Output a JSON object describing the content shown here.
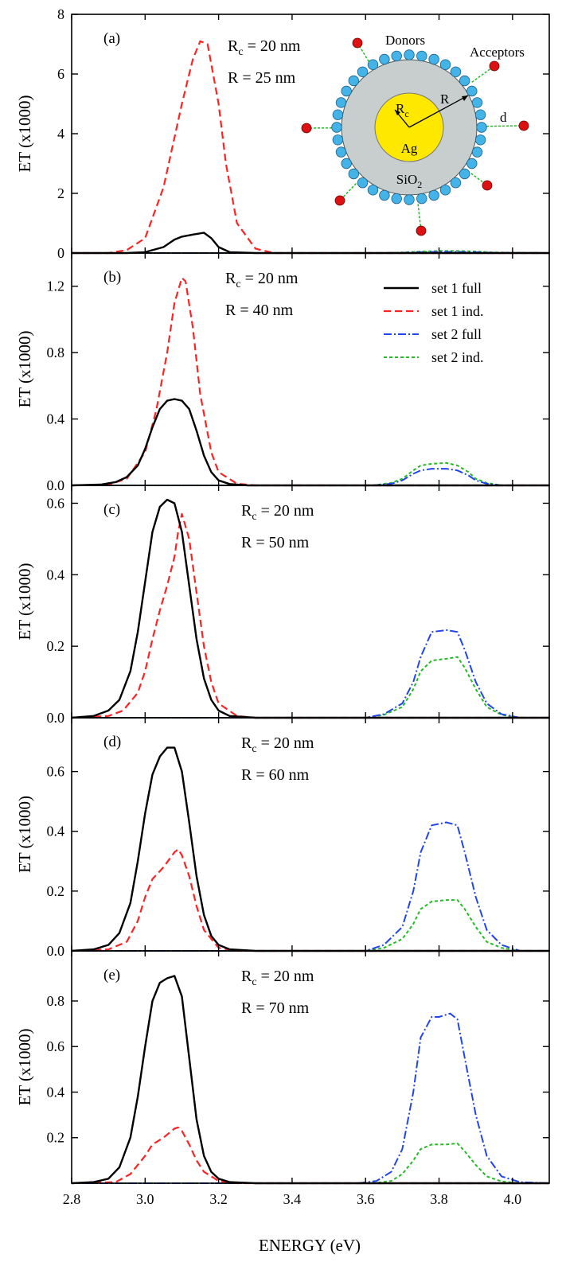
{
  "chart_data": {
    "type": "line",
    "xlabel": "ENERGY (eV)",
    "xlim": [
      2.8,
      4.1
    ],
    "xticks": [
      "2.8",
      "3.0",
      "3.2",
      "3.4",
      "3.6",
      "3.8",
      "4.0"
    ],
    "xtick_values": [
      2.8,
      3.0,
      3.2,
      3.4,
      3.6,
      3.8,
      4.0
    ],
    "legend": {
      "placement": "panel-b top-right",
      "entries": [
        {
          "id": "s1f",
          "label": "set 1 full",
          "color": "#000000",
          "style": "solid"
        },
        {
          "id": "s1i",
          "label": "set 1 ind.",
          "color": "#ff2222",
          "style": "dashed"
        },
        {
          "id": "s2f",
          "label": "set 2 full",
          "color": "#2244ee",
          "style": "dashdot"
        },
        {
          "id": "s2i",
          "label": "set 2 ind.",
          "color": "#22bb22",
          "style": "dotted"
        }
      ]
    },
    "inset": {
      "labels": {
        "donors": "Donors",
        "acceptors": "Acceptors",
        "rc": "R",
        "rc_sub": "c",
        "r": "R",
        "d": "d",
        "ag": "Ag",
        "sio": "SiO",
        "sio_sub": "2"
      },
      "colors": {
        "core": "#ffe800",
        "shell": "#c8cece",
        "donor": "#44b4e8",
        "acceptor": "#dd1111",
        "link": "#22bb22"
      }
    },
    "panels": [
      {
        "label": "(a)",
        "ylabel": "ET  (x1000)",
        "ylim": [
          0,
          8
        ],
        "yticks": [
          "0",
          "2",
          "4",
          "6",
          "8"
        ],
        "ytick_values": [
          0,
          2,
          4,
          6,
          8
        ],
        "annot_rc_prefix": "R",
        "annot_rc_sub": "c",
        "annot_rc_suffix": " = 20 nm",
        "annot_r": "R = 25 nm",
        "series": {
          "s1f": {
            "x": [
              2.8,
              2.95,
              3.0,
              3.05,
              3.08,
              3.1,
              3.13,
              3.16,
              3.18,
              3.2,
              3.23,
              3.3,
              4.1
            ],
            "y": [
              0,
              0,
              0.03,
              0.2,
              0.45,
              0.55,
              0.62,
              0.68,
              0.5,
              0.2,
              0.03,
              0,
              0
            ]
          },
          "s1i": {
            "x": [
              2.8,
              2.9,
              2.95,
              3.0,
              3.05,
              3.1,
              3.13,
              3.15,
              3.17,
              3.2,
              3.22,
              3.25,
              3.3,
              3.35,
              4.1
            ],
            "y": [
              0,
              0,
              0.1,
              0.5,
              2.2,
              5.0,
              6.5,
              7.1,
              7.0,
              5.0,
              3.0,
              1.0,
              0.15,
              0,
              0
            ]
          },
          "s2f": {
            "x": [
              2.8,
              3.65,
              3.7,
              3.75,
              3.8,
              3.85,
              3.9,
              3.95,
              4.1
            ],
            "y": [
              0,
              0,
              0.01,
              0.03,
              0.04,
              0.04,
              0.03,
              0.01,
              0
            ]
          },
          "s2i": {
            "x": [
              2.8,
              3.65,
              3.7,
              3.75,
              3.8,
              3.85,
              3.9,
              3.95,
              4.1
            ],
            "y": [
              0,
              0,
              0.02,
              0.05,
              0.07,
              0.07,
              0.05,
              0.02,
              0
            ]
          }
        }
      },
      {
        "label": "(b)",
        "ylabel": "ET  (x1000)",
        "ylim": [
          0,
          1.4
        ],
        "yticks": [
          "0.0",
          "0.4",
          "0.8",
          "1.2"
        ],
        "ytick_values": [
          0,
          0.4,
          0.8,
          1.2
        ],
        "annot_rc_prefix": "R",
        "annot_rc_sub": "c",
        "annot_rc_suffix": " = 20 nm",
        "annot_r": "R = 40 nm",
        "series": {
          "s1f": {
            "x": [
              2.8,
              2.88,
              2.92,
              2.95,
              2.98,
              3.0,
              3.02,
              3.04,
              3.06,
              3.08,
              3.1,
              3.12,
              3.14,
              3.16,
              3.18,
              3.2,
              3.23,
              3.28,
              4.1
            ],
            "y": [
              0,
              0.005,
              0.02,
              0.05,
              0.12,
              0.22,
              0.35,
              0.46,
              0.51,
              0.52,
              0.51,
              0.46,
              0.33,
              0.18,
              0.08,
              0.03,
              0.008,
              0,
              0
            ]
          },
          "s1i": {
            "x": [
              2.8,
              2.9,
              2.95,
              3.0,
              3.03,
              3.06,
              3.08,
              3.1,
              3.11,
              3.13,
              3.15,
              3.18,
              3.2,
              3.25,
              3.3,
              4.1
            ],
            "y": [
              0,
              0.005,
              0.04,
              0.2,
              0.45,
              0.8,
              1.1,
              1.25,
              1.23,
              0.95,
              0.55,
              0.2,
              0.08,
              0.01,
              0,
              0
            ]
          },
          "s2f": {
            "x": [
              2.8,
              3.62,
              3.67,
              3.7,
              3.73,
              3.75,
              3.78,
              3.82,
              3.85,
              3.88,
              3.9,
              3.93,
              3.97,
              4.1
            ],
            "y": [
              0,
              0,
              0.01,
              0.03,
              0.07,
              0.09,
              0.1,
              0.1,
              0.09,
              0.06,
              0.03,
              0.01,
              0,
              0
            ]
          },
          "s2i": {
            "x": [
              2.8,
              3.62,
              3.67,
              3.7,
              3.73,
              3.75,
              3.78,
              3.82,
              3.85,
              3.88,
              3.9,
              3.93,
              3.97,
              4.1
            ],
            "y": [
              0,
              0,
              0.015,
              0.04,
              0.09,
              0.12,
              0.13,
              0.135,
              0.12,
              0.08,
              0.04,
              0.015,
              0,
              0
            ]
          }
        }
      },
      {
        "label": "(c)",
        "ylabel": "ET  (x1000)",
        "ylim": [
          0,
          0.65
        ],
        "yticks": [
          "0.0",
          "0.2",
          "0.4",
          "0.6"
        ],
        "ytick_values": [
          0,
          0.2,
          0.4,
          0.6
        ],
        "annot_rc_prefix": "R",
        "annot_rc_sub": "c",
        "annot_rc_suffix": " = 20 nm",
        "annot_r": "R = 50 nm",
        "series": {
          "s1f": {
            "x": [
              2.8,
              2.86,
              2.9,
              2.93,
              2.96,
              2.98,
              3.0,
              3.02,
              3.04,
              3.06,
              3.08,
              3.1,
              3.12,
              3.14,
              3.16,
              3.18,
              3.2,
              3.23,
              3.3,
              4.1
            ],
            "y": [
              0,
              0.005,
              0.02,
              0.05,
              0.13,
              0.24,
              0.38,
              0.52,
              0.59,
              0.61,
              0.6,
              0.52,
              0.37,
              0.22,
              0.11,
              0.05,
              0.02,
              0.005,
              0,
              0
            ]
          },
          "s1i": {
            "x": [
              2.8,
              2.9,
              2.94,
              2.98,
              3.0,
              3.02,
              3.04,
              3.06,
              3.08,
              3.09,
              3.1,
              3.12,
              3.14,
              3.16,
              3.18,
              3.2,
              3.25,
              3.3,
              4.1
            ],
            "y": [
              0,
              0.005,
              0.02,
              0.07,
              0.13,
              0.22,
              0.3,
              0.37,
              0.45,
              0.52,
              0.57,
              0.5,
              0.35,
              0.2,
              0.1,
              0.04,
              0.005,
              0,
              0
            ]
          },
          "s2f": {
            "x": [
              2.8,
              3.6,
              3.65,
              3.7,
              3.73,
              3.75,
              3.78,
              3.82,
              3.85,
              3.87,
              3.9,
              3.93,
              3.97,
              4.02,
              4.1
            ],
            "y": [
              0,
              0,
              0.01,
              0.04,
              0.1,
              0.17,
              0.24,
              0.245,
              0.24,
              0.19,
              0.1,
              0.04,
              0.01,
              0,
              0
            ]
          },
          "s2i": {
            "x": [
              2.8,
              3.6,
              3.65,
              3.7,
              3.73,
              3.75,
              3.78,
              3.82,
              3.85,
              3.87,
              3.9,
              3.93,
              3.97,
              4.02,
              4.1
            ],
            "y": [
              0,
              0,
              0.008,
              0.03,
              0.08,
              0.13,
              0.16,
              0.165,
              0.17,
              0.14,
              0.08,
              0.03,
              0.008,
              0,
              0
            ]
          }
        }
      },
      {
        "label": "(d)",
        "ylabel": "ET  (x1000)",
        "ylim": [
          0,
          0.78
        ],
        "yticks": [
          "0.0",
          "0.2",
          "0.4",
          "0.6"
        ],
        "ytick_values": [
          0,
          0.2,
          0.4,
          0.6
        ],
        "annot_rc_prefix": "R",
        "annot_rc_sub": "c",
        "annot_rc_suffix": " = 20 nm",
        "annot_r": "R = 60 nm",
        "series": {
          "s1f": {
            "x": [
              2.8,
              2.86,
              2.9,
              2.93,
              2.96,
              2.98,
              3.0,
              3.02,
              3.04,
              3.06,
              3.08,
              3.1,
              3.12,
              3.14,
              3.16,
              3.18,
              3.2,
              3.23,
              3.3,
              4.1
            ],
            "y": [
              0,
              0.005,
              0.02,
              0.06,
              0.16,
              0.3,
              0.46,
              0.59,
              0.65,
              0.68,
              0.68,
              0.6,
              0.43,
              0.25,
              0.12,
              0.05,
              0.02,
              0.005,
              0,
              0
            ]
          },
          "s1i": {
            "x": [
              2.8,
              2.9,
              2.95,
              2.98,
              3.0,
              3.02,
              3.05,
              3.08,
              3.09,
              3.1,
              3.12,
              3.14,
              3.16,
              3.2,
              3.25,
              4.1
            ],
            "y": [
              0,
              0.005,
              0.03,
              0.1,
              0.18,
              0.24,
              0.28,
              0.33,
              0.34,
              0.32,
              0.25,
              0.15,
              0.07,
              0.01,
              0,
              0
            ]
          },
          "s2f": {
            "x": [
              2.8,
              3.6,
              3.65,
              3.7,
              3.73,
              3.75,
              3.78,
              3.82,
              3.85,
              3.87,
              3.9,
              3.93,
              3.97,
              4.02,
              4.1
            ],
            "y": [
              0,
              0,
              0.02,
              0.08,
              0.2,
              0.33,
              0.42,
              0.43,
              0.42,
              0.33,
              0.18,
              0.07,
              0.02,
              0,
              0
            ]
          },
          "s2i": {
            "x": [
              2.8,
              3.6,
              3.65,
              3.7,
              3.73,
              3.75,
              3.78,
              3.82,
              3.85,
              3.87,
              3.9,
              3.93,
              3.97,
              4.02,
              4.1
            ],
            "y": [
              0,
              0,
              0.01,
              0.04,
              0.09,
              0.14,
              0.165,
              0.17,
              0.17,
              0.14,
              0.08,
              0.03,
              0.01,
              0,
              0
            ]
          }
        }
      },
      {
        "label": "(e)",
        "ylabel": "ET  (x1000)",
        "ylim": [
          0,
          1.02
        ],
        "yticks": [
          "0.2",
          "0.4",
          "0.6",
          "0.8"
        ],
        "ytick_values": [
          0.2,
          0.4,
          0.6,
          0.8
        ],
        "annot_rc_prefix": "R",
        "annot_rc_sub": "c",
        "annot_rc_suffix": " = 20 nm",
        "annot_r": "R = 70 nm",
        "series": {
          "s1f": {
            "x": [
              2.8,
              2.86,
              2.9,
              2.93,
              2.96,
              2.98,
              3.0,
              3.02,
              3.04,
              3.06,
              3.08,
              3.1,
              3.12,
              3.14,
              3.16,
              3.18,
              3.2,
              3.23,
              3.3,
              4.1
            ],
            "y": [
              0,
              0.005,
              0.02,
              0.07,
              0.2,
              0.38,
              0.6,
              0.8,
              0.88,
              0.9,
              0.91,
              0.82,
              0.55,
              0.28,
              0.12,
              0.05,
              0.02,
              0.005,
              0,
              0
            ]
          },
          "s1i": {
            "x": [
              2.8,
              2.92,
              2.96,
              3.0,
              3.02,
              3.05,
              3.08,
              3.09,
              3.1,
              3.12,
              3.14,
              3.16,
              3.2,
              3.25,
              4.1
            ],
            "y": [
              0,
              0.005,
              0.04,
              0.12,
              0.17,
              0.2,
              0.24,
              0.245,
              0.23,
              0.17,
              0.1,
              0.05,
              0.01,
              0,
              0
            ]
          },
          "s2f": {
            "x": [
              2.8,
              3.58,
              3.63,
              3.67,
              3.7,
              3.73,
              3.75,
              3.78,
              3.8,
              3.83,
              3.85,
              3.87,
              3.9,
              3.93,
              3.97,
              4.02,
              4.1
            ],
            "y": [
              0,
              0,
              0.01,
              0.05,
              0.15,
              0.4,
              0.64,
              0.73,
              0.73,
              0.745,
              0.72,
              0.55,
              0.3,
              0.12,
              0.03,
              0.005,
              0
            ]
          },
          "s2i": {
            "x": [
              2.8,
              3.62,
              3.67,
              3.7,
              3.73,
              3.75,
              3.78,
              3.82,
              3.85,
              3.87,
              3.9,
              3.93,
              3.97,
              4.02,
              4.1
            ],
            "y": [
              0,
              0,
              0.01,
              0.04,
              0.1,
              0.15,
              0.17,
              0.17,
              0.175,
              0.14,
              0.08,
              0.03,
              0.008,
              0,
              0
            ]
          }
        }
      }
    ]
  }
}
